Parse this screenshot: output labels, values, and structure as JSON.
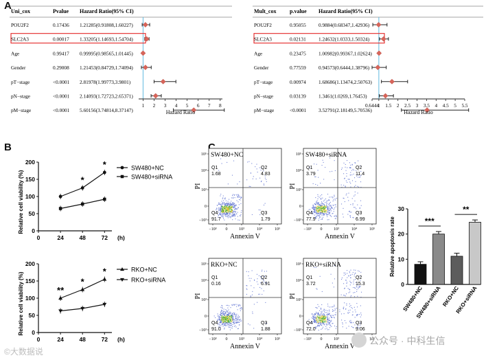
{
  "panel_labels": {
    "a": "A",
    "b": "B",
    "c": "C"
  },
  "chart_data": [
    {
      "type": "forest",
      "id": "uni",
      "headers": [
        "Uni_cox",
        "Pvalue",
        "Hazard Ratio(95% CI)"
      ],
      "xlabel": "Hazard Ratio",
      "ticks": [
        "1",
        "2",
        "3",
        "4",
        "5",
        "6",
        "7",
        "8"
      ],
      "xlim": [
        0.6,
        8.2
      ],
      "ref_line": 1,
      "highlight": "SLC2A3",
      "rows": [
        {
          "var": "POU2F2",
          "p": "0.17436",
          "hr_text": "1.21285(0.91808,1.60227)",
          "hr": 1.21285,
          "lo": 0.91808,
          "hi": 1.60227
        },
        {
          "var": "SLC2A3",
          "p": "0.00017",
          "hr_text": "1.33205(1.14693,1.54704)",
          "hr": 1.33205,
          "lo": 1.14693,
          "hi": 1.54704
        },
        {
          "var": "Age",
          "p": "0.99417",
          "hr_text": "0.99995(0.98565,1.01445)",
          "hr": 0.99995,
          "lo": 0.98565,
          "hi": 1.01445
        },
        {
          "var": "Gender",
          "p": "0.29008",
          "hr_text": "1.21453(0.84729,1.74094)",
          "hr": 1.21453,
          "lo": 0.84729,
          "hi": 1.74094
        },
        {
          "var": "pT−stage",
          "p": "<0.0001",
          "hr_text": "2.81978(1.99773,3.9801)",
          "hr": 2.81978,
          "lo": 1.99773,
          "hi": 3.9801
        },
        {
          "var": "pN−stage",
          "p": "<0.0001",
          "hr_text": "2.14093(1.72723,2.65371)",
          "hr": 2.14093,
          "lo": 1.72723,
          "hi": 2.65371
        },
        {
          "var": "pM−stage",
          "p": "<0.0001",
          "hr_text": "5.60156(3.74814,8.37147)",
          "hr": 5.60156,
          "lo": 3.74814,
          "hi": 8.37147
        }
      ]
    },
    {
      "type": "forest",
      "id": "multi",
      "headers": [
        "Mult_cox",
        "p.value",
        "Hazard Ratio(95% CI)"
      ],
      "xlabel": "Hazard Ratio",
      "ticks": [
        "0.6444",
        "1",
        "1.5",
        "2",
        "2.5",
        "3",
        "3.5",
        "4",
        "4.5",
        "5",
        "5.5"
      ],
      "xlim": [
        0.6444,
        5.5
      ],
      "ref_line": 1,
      "highlight": "SLC2A3",
      "rows": [
        {
          "var": "POU2F2",
          "p": "0.95055",
          "hr_text": "0.9884(0.68347,1.42936)",
          "hr": 0.9884,
          "lo": 0.68347,
          "hi": 1.42936
        },
        {
          "var": "SLC2A3",
          "p": "0.02131",
          "hr_text": "1.24632(1.0333,1.50324)",
          "hr": 1.24632,
          "lo": 1.0333,
          "hi": 1.50324
        },
        {
          "var": "Age",
          "p": "0.23475",
          "hr_text": "1.00982(0.99367,1.02624)",
          "hr": 1.00982,
          "lo": 0.99367,
          "hi": 1.02624
        },
        {
          "var": "Gender",
          "p": "0.77559",
          "hr_text": "0.94573(0.6444,1.38796)",
          "hr": 0.94573,
          "lo": 0.6444,
          "hi": 1.38796
        },
        {
          "var": "pT−stage",
          "p": "0.00974",
          "hr_text": "1.68686(1.13474,2.50763)",
          "hr": 1.68686,
          "lo": 1.13474,
          "hi": 2.50763
        },
        {
          "var": "pN−stage",
          "p": "0.03139",
          "hr_text": "1.3461(1.0269,1.76453)",
          "hr": 1.3461,
          "lo": 1.0269,
          "hi": 1.76453
        },
        {
          "var": "pM−stage",
          "p": "<0.0001",
          "hr_text": "3.52791(2.18149,5.70536)",
          "hr": 3.52791,
          "lo": 2.18149,
          "hi": 5.70536
        }
      ]
    },
    {
      "type": "line",
      "id": "sw480",
      "ylabel": "Relative cell viability (%)",
      "xticks": [
        "0",
        "24",
        "48",
        "72"
      ],
      "x_unit": "(h)",
      "yticks": [
        "0",
        "50",
        "100",
        "150",
        "200"
      ],
      "ylim": [
        0,
        200
      ],
      "xlim": [
        0,
        80
      ],
      "series": [
        {
          "name": "SW480+NC",
          "marker": "circle",
          "x": [
            24,
            48,
            72
          ],
          "values": [
            100,
            125,
            170
          ]
        },
        {
          "name": "SW480+siRNA",
          "marker": "square",
          "x": [
            24,
            48,
            72
          ],
          "values": [
            65,
            78,
            92
          ]
        }
      ],
      "significance": [
        {
          "x": 48,
          "label": "*"
        },
        {
          "x": 72,
          "label": "*"
        }
      ]
    },
    {
      "type": "line",
      "id": "rko",
      "ylabel": "Relative cell viability (%)",
      "xticks": [
        "0",
        "24",
        "48",
        "72"
      ],
      "x_unit": "(h)",
      "yticks": [
        "0",
        "50",
        "100",
        "150",
        "200"
      ],
      "ylim": [
        0,
        200
      ],
      "xlim": [
        0,
        80
      ],
      "series": [
        {
          "name": "RKO+NC",
          "marker": "triangle-up",
          "x": [
            24,
            48,
            72
          ],
          "values": [
            100,
            125,
            155
          ]
        },
        {
          "name": "RKO+siRNA",
          "marker": "triangle-down",
          "x": [
            24,
            48,
            72
          ],
          "values": [
            63,
            70,
            82
          ]
        }
      ],
      "significance": [
        {
          "x": 24,
          "label": "**"
        },
        {
          "x": 48,
          "label": "*"
        },
        {
          "x": 72,
          "label": "*"
        }
      ]
    },
    {
      "type": "bar",
      "id": "apoptosis",
      "ylabel": "Relative apoptosis rate",
      "categories": [
        "SW480+NC",
        "SW480+siRNA",
        "RKO+NC",
        "RKO+siRNA"
      ],
      "values": [
        8,
        20,
        11.2,
        24.7
      ],
      "errors": [
        1,
        1,
        1.2,
        0.9
      ],
      "colors": [
        "#111111",
        "#8a8a8a",
        "#5c5c5c",
        "#c8c8c8"
      ],
      "yticks": [
        "0",
        "10",
        "20",
        "30"
      ],
      "ylim": [
        0,
        30
      ],
      "significance": [
        {
          "from": 0,
          "to": 1,
          "label": "***"
        },
        {
          "from": 2,
          "to": 3,
          "label": "**"
        }
      ]
    }
  ],
  "flow_plots": [
    {
      "title": "SW480+NC",
      "q1": "Q1",
      "q1v": "1.68",
      "q2": "Q2",
      "q2v": "4.83",
      "q3": "Q3",
      "q3v": "1.79",
      "q4": "Q4",
      "q4v": "91.7"
    },
    {
      "title": "SW480+siRNA",
      "q1": "Q1",
      "q1v": "3.79",
      "q2": "Q2",
      "q2v": "11.4",
      "q3": "Q3",
      "q3v": "6.99",
      "q4": "Q4",
      "q4v": "77.9"
    },
    {
      "title": "RKO+NC",
      "q1": "Q1",
      "q1v": "0.16",
      "q2": "Q2",
      "q2v": "6.91",
      "q3": "Q3",
      "q3v": "1.88",
      "q4": "Q4",
      "q4v": "91.0"
    },
    {
      "title": "RKO+siRNA",
      "q1": "Q1",
      "q1v": "3.72",
      "q2": "Q2",
      "q2v": "15.3",
      "q3": "Q3",
      "q3v": "9.06",
      "q4": "Q4",
      "q4v": "72.0"
    }
  ],
  "flow_axes": {
    "xlabel": "Annexin V",
    "ylabel": "PI",
    "xticks": [
      "−10³",
      "0",
      "10³",
      "10⁴",
      "10⁵"
    ],
    "yticks": [
      "−10³",
      "0",
      "10³",
      "10⁴",
      "10⁵"
    ]
  },
  "watermarks": {
    "left": "©大数据说",
    "right": "公众号 · 中科生信"
  }
}
